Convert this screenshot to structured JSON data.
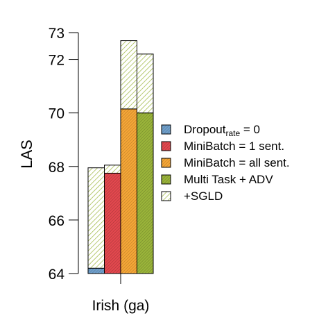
{
  "chart_data": {
    "type": "bar",
    "title": "",
    "xlabel": "",
    "ylabel": "LAS",
    "ylim": [
      64,
      73
    ],
    "yticks": [
      64,
      66,
      68,
      70,
      72,
      73
    ],
    "categories": [
      "Irish (ga)"
    ],
    "bar_style": "stacked: solid base value with hatched +SGLD gain on top",
    "series": [
      {
        "name": "Dropout",
        "name_sub": "rate",
        "name_suffix": " = 0",
        "base": 64.2,
        "sgld_total": 67.95,
        "color": "#6f9fcb"
      },
      {
        "name": "MiniBatch = 1 sent.",
        "base": 67.75,
        "sgld_total": 68.05,
        "color": "#e2484e"
      },
      {
        "name": "MiniBatch = all sent.",
        "base": 70.15,
        "sgld_total": 72.7,
        "color": "#f5a637"
      },
      {
        "name": "Multi Task + ADV",
        "base": 70.0,
        "sgld_total": 72.2,
        "color": "#9ab43a"
      }
    ],
    "sgld_legend": {
      "name": "+SGLD",
      "color": "#9ab43a"
    },
    "legend_position": "right",
    "grid": false
  }
}
